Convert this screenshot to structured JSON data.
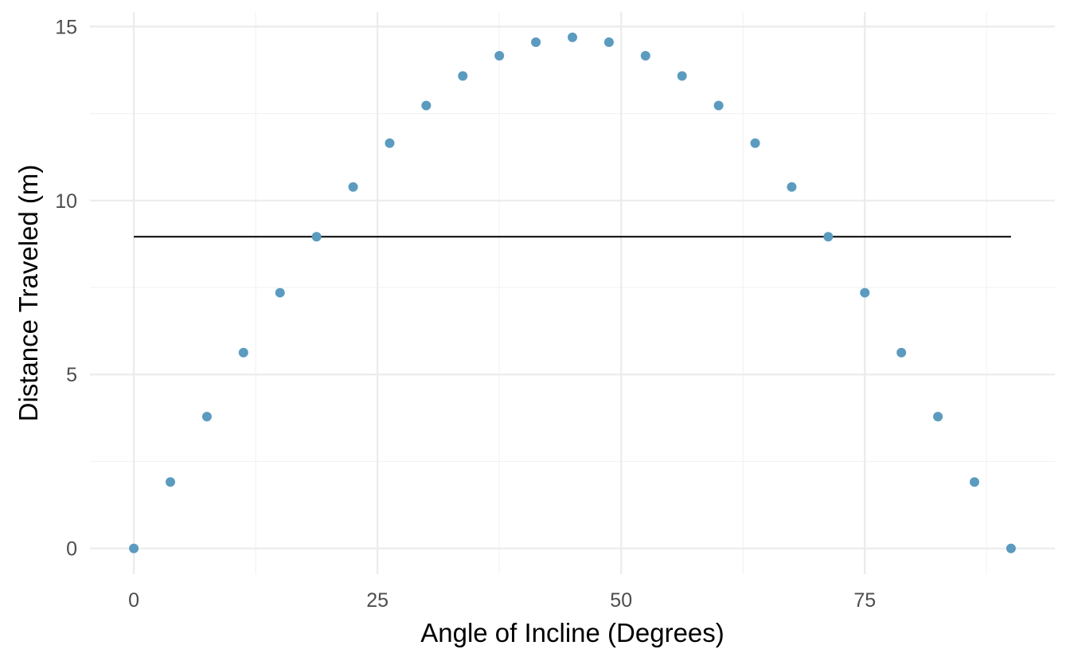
{
  "chart_data": {
    "type": "scatter",
    "title": "",
    "xlabel": "Angle of Incline (Degrees)",
    "ylabel": "Distance Traveled (m)",
    "xlim": [
      -4.5,
      94.5
    ],
    "ylim": [
      -0.74,
      15.42
    ],
    "x_ticks": [
      0,
      25,
      50,
      75
    ],
    "x_tick_labels": [
      "0",
      "25",
      "50",
      "75"
    ],
    "y_ticks": [
      0,
      5,
      10,
      15
    ],
    "y_tick_labels": [
      "0",
      "5",
      "10",
      "15"
    ],
    "grid": true,
    "point_color": "#5b9bbf",
    "line_color": "#000000",
    "series": [
      {
        "type": "scatter",
        "x": [
          0,
          3.75,
          7.5,
          11.25,
          15,
          18.75,
          22.5,
          26.25,
          30,
          33.75,
          37.5,
          41.25,
          45,
          48.75,
          52.5,
          56.25,
          60,
          63.75,
          67.5,
          71.25,
          75,
          78.75,
          82.5,
          86.25,
          90
        ],
        "y": [
          0,
          1.91,
          3.79,
          5.63,
          7.35,
          8.96,
          10.39,
          11.65,
          12.73,
          13.58,
          14.16,
          14.55,
          14.69,
          14.55,
          14.16,
          13.58,
          12.73,
          11.65,
          10.39,
          8.96,
          7.35,
          5.63,
          3.79,
          1.91,
          0
        ]
      },
      {
        "type": "line",
        "x": [
          0,
          90
        ],
        "y": [
          8.96,
          8.96
        ]
      }
    ]
  }
}
